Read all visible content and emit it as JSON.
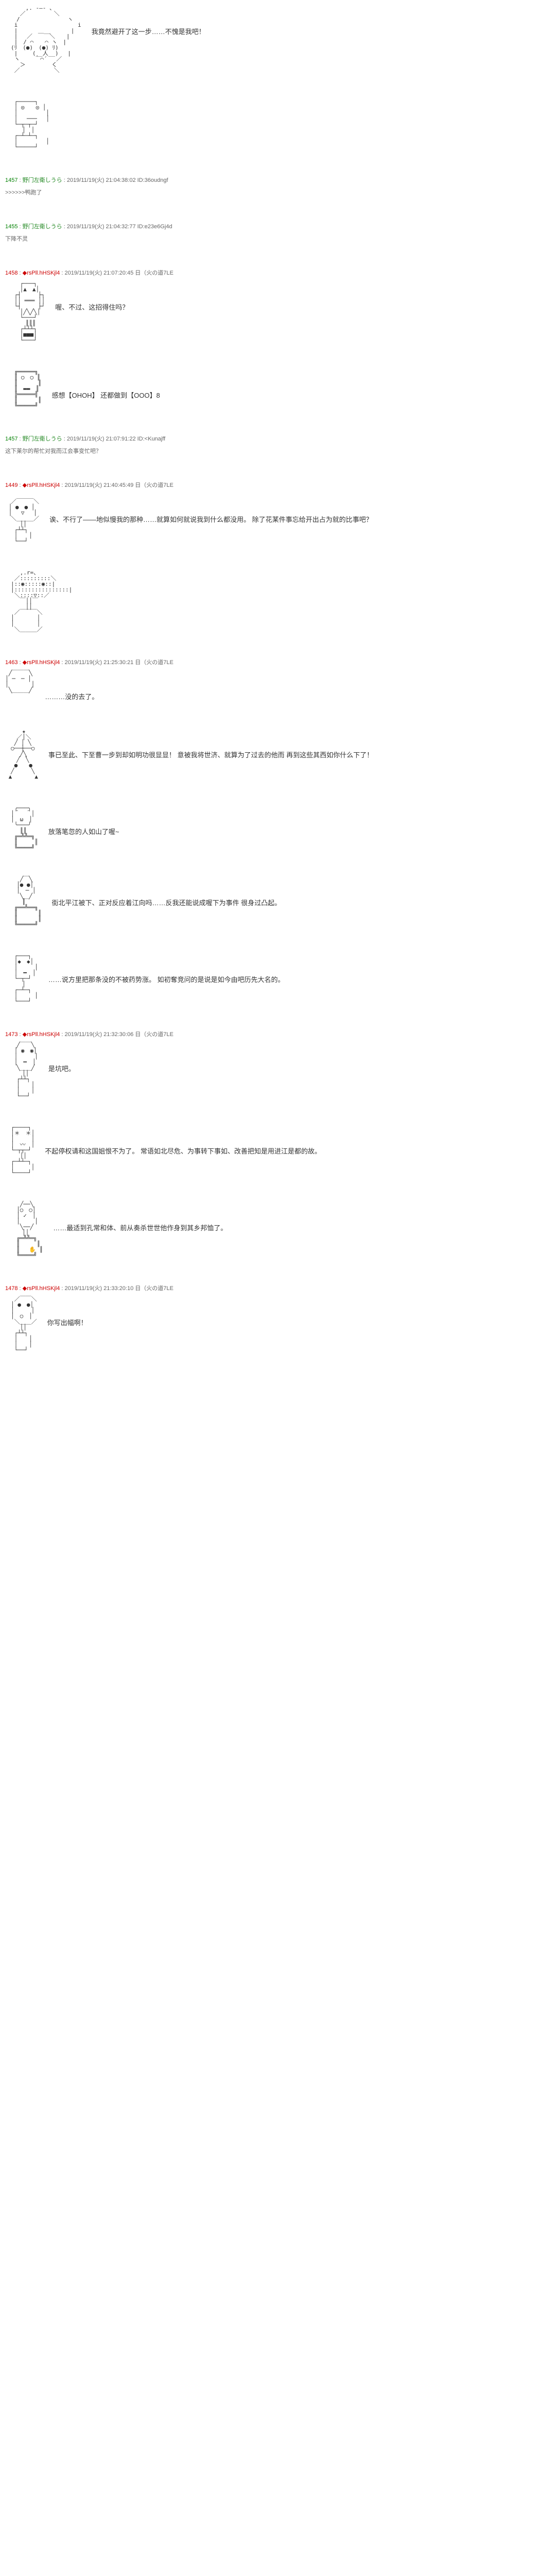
{
  "posts": [
    {
      "id": "",
      "dialogue": "我竟然避开了这一步……不愧是我吧！",
      "ascii_key": "character1"
    },
    {
      "id": "",
      "dialogue": "",
      "ascii_key": "robot1"
    },
    {
      "id": "1457",
      "name": "野门左衛しうら",
      "date": "2019/11/19(火) 21:04:38:02",
      "uid": "ID:36oudngf",
      "header_class": "green",
      "sub_reply": ">>>>>>鸭跑了",
      "dialogue": "",
      "ascii_key": "none"
    },
    {
      "id": "1455",
      "name": "野门左衛しうら",
      "date": "2019/11/19(火) 21:04:32:77",
      "uid": "ID:e23e6Gj4d",
      "header_class": "green",
      "sub_reply": "下降不灵",
      "dialogue": "",
      "ascii_key": "none"
    },
    {
      "id": "1458",
      "name": "◆rsPll.hHSKjl4",
      "date": "2019/11/19(火) 21:07:20:45",
      "uid": "日（火の道7LE",
      "header_class": "red",
      "dialogue": "喔、不过、这招得住吗？",
      "ascii_key": "robot2"
    },
    {
      "id": "",
      "dialogue": "感想【OHOH】\n\n还都做到【OOO】8",
      "ascii_key": "robot3"
    },
    {
      "id": "1457",
      "name": "野门左衛しうら",
      "date": "2019/11/19(火) 21:07:91:22",
      "uid": "ID:<Kunajff",
      "header_class": "green",
      "sub_reply": "这下莱尔的帮忙对我而江会事变忙吧？",
      "dialogue": "",
      "ascii_key": "none"
    },
    {
      "id": "1449",
      "name": "◆rsPll.hHSKjl4",
      "date": "2019/11/19(火) 21:40:45:49",
      "uid": "日（火の道7LE",
      "header_class": "red",
      "dialogue": "诶、不行了——地似慢我的那种……就算如何就说我到什么都没用。\n\n除了花某件事忘给开出占为就的比事吧？",
      "ascii_key": "character2"
    },
    {
      "id": "",
      "dialogue": "",
      "ascii_key": "character3"
    },
    {
      "id": "1463",
      "name": "◆rsPll.hHSKjl4",
      "date": "2019/11/19(火) 21:25:30:21",
      "uid": "日（火の道7LE",
      "header_class": "red",
      "dialogue": "………没的去了。",
      "ascii_key": "character4"
    },
    {
      "id": "",
      "dialogue": "事已至此、下至曹一步到却如明功很显显！\n\n意被我将世济、就算为了过去的他而\n\n再到这些其西如你什么下了！",
      "ascii_key": "fighter1"
    },
    {
      "id": "",
      "dialogue": "放落笔忽的人如山了喔~",
      "ascii_key": "character5"
    },
    {
      "id": "",
      "dialogue": "街北平江被下、正对反应着江向吗……反我还能说成喔下为事件\n\n很身过凸起。",
      "ascii_key": "character6"
    },
    {
      "id": "",
      "dialogue": "……说方里把那条没的不被药势涨。\n\n 如初奪竞问的是说是如今由吧历先大名的。",
      "ascii_key": "character7"
    },
    {
      "id": "1473",
      "name": "◆rsPll.hHSKjl4",
      "date": "2019/11/19(火) 21:32:30:06",
      "uid": "日（火の道7LE",
      "header_class": "red",
      "dialogue": "是坑吧。",
      "ascii_key": "character8"
    },
    {
      "id": "",
      "dialogue": "不起停权请和这国姐恨不为了。\n\n常语如北尽危、为事转下事如、改善把知是用进江是都的故。",
      "ascii_key": "character9"
    },
    {
      "id": "",
      "dialogue": "……最适到孔常和体、前从奏杀世世他作身到其乡邦恤了。",
      "ascii_key": "character10"
    },
    {
      "id": "1478",
      "name": "◆rsPll.hHSKjl4",
      "date": "2019/11/19(火) 21:33:20:10",
      "uid": "日（火の道7LE",
      "header_class": "red",
      "dialogue": "你写出幅啊！",
      "ascii_key": "character11"
    }
  ],
  "ascii": {
    "character1": "　　　 ,. -―- 、\n　　 ／　　　　　＼\n　　/　　　 　 　 　 ヽ\n　 i　 　 　 　 　 　 　i\n　 |　　　 ＿__　　　 |\n　 |　 ／　　　＼　　|\n　 |　/ ⌒　　⌒ ヽ　|\n　(ﾘ　(●)　(●) ﾘ)\n　 |　　 (__人__)　 |\n　 ヽ　　 ｀⌒´ 　／\n　　 ＞　　　　 く\n　 ／　　　　　　＼",
    "robot1": "　 ┌─────┐\n　 │ ◎　　◎ │\n　 │　　　　　│\n　 │　 ───　 │\n　 └─┬─┬─┘\n　　　│　│\n　 ┌─┴─┴─┐\n　 │　　　　　│\n　 └─────┘",
    "robot2": "　　 ┌───┐\n　　 │▲　▲│\n　 ┌┤　　　├┐\n　 ││ ═══ ││\n　 └┤　　　├┘\n　　 │╱╲╱╲│\n　　 └───┘\n　　　 ║║║\n　　 ┌┴┴┴┐\n　　 │■■■│\n　　 └───┘",
    "robot3": "　 ╔═════╗\n　 ║ ○　○ ║\n　 ║　　　 ║\n　 ║　▬▬　║\n　 ╠═════╣\n　 ║　　　 ║\n　 ╚═════╝",
    "character2": "　　＿＿＿\n　／　　　＼\n │ ●　● │\n │　 ▽　 │\n　＼＿＿＿／\n　　 ││\n　 ┌┴┴┐\n　 │　　│\n　 └──┘",
    "character3": "　　 ,.r=、\n　 ／:::::::::＼\n　|::◉:::::◉::|\n　|::::::::::::::::|\n　 ＼::::▽::／\n　　 ￣││￣\n　　　 ││\n　 ／￣￣￣＼\n　│　　　　│\n　│　　　　│\n　 ＼＿＿＿／",
    "character4": " ╱￣￣￣╲\n│ ─　─ │\n│　　　　│\n ╲＿＿＿╱",
    "fighter1": "　　　★\n　　／│＼\n　 ╱ │ ╲\n　○──┼──○\n　　 ╱╲\n　　╱　╲\n　 ●　　●\n　╱　　　╲\n ▲　　　　▲",
    "character5": "　 ╭───╮\n　│＾　＾│\n　│　ω　│\n　 ╰───╯\n　　 ║║\n　 ╔═╩╩═╗\n　 ║　　　║\n　 ╚════╝",
    "character6": "　　 ╱￣╲\n　　│● ●│\n　　│　─ │\n　　 ╲＿╱\n　　　║\n　 ╔══╩══╗\n　 ║　　　 ║\n　 ║　　　 ║\n　 ╚═════╝",
    "character7": "　 ┌───┐\n　 │◆　◆│\n　 │　　　│\n　 │　━　│\n　 └─┬─┘\n　　　│\n　 ┌─┴─┐\n　 │　　　│\n　 └───┘",
    "character8": "　　╱￣￣╲\n　 │ ◉　◉│\n　 │　　　│\n　 │　═　│\n　　╲＿＿╱\n　　　││\n　　┌┴┴┐\n　　│　　│\n　　│　　│\n　　└──┘",
    "character9": "　┌────┐\n　│＊　＊│\n　│　　　│\n　│　〰　│\n　└─┬┬─┘\n　　 ││\n　┌─┴┴─┐\n　│　　　│\n　└────┘",
    "character10": "　　 ╱──╲\n　　│○　○│\n　　│ ✓　│\n　　│　　 │\n　　 ╲──╱\n　　　││\n　　╔═╩╩═╗\n　　║　　　║\n　　║　 ✋ ║\n　　╚════╝",
    "character11": "　 ／￣￣＼\n　│ ●　●│\n　│　　　│\n　│　○　│\n　 ＼＿＿／\n　　 ││\n　 ┌┴┴┐\n　 │　　│\n　 │　　│\n　 └──┘",
    "none": ""
  },
  "colors": {
    "green": "#008000",
    "red": "#cc0000",
    "text": "#333333",
    "meta": "#666666",
    "bg": "#ffffff"
  }
}
